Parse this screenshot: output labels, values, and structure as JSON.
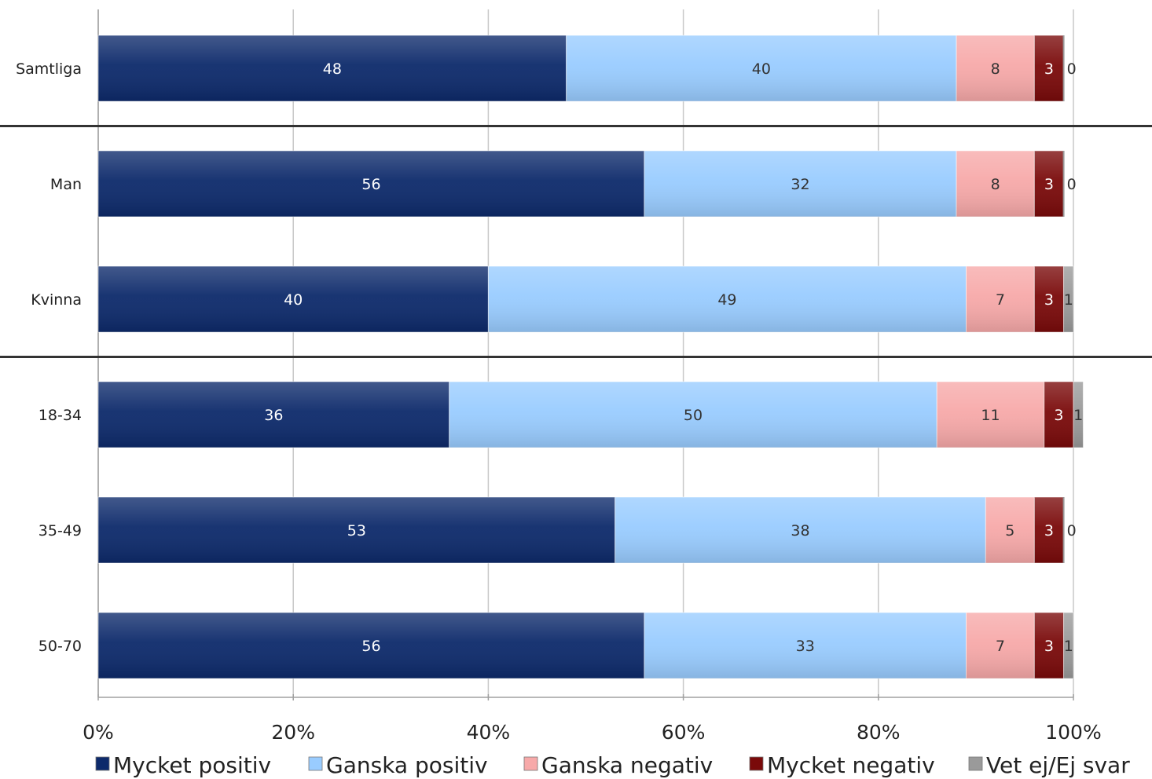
{
  "chart_data": {
    "type": "bar",
    "orientation": "horizontal",
    "stacked": true,
    "title": "",
    "xlabel": "",
    "ylabel": "",
    "xlim": [
      0,
      100
    ],
    "x_ticks": [
      "0%",
      "20%",
      "40%",
      "60%",
      "80%",
      "100%"
    ],
    "grid": true,
    "legend_position": "bottom",
    "categories": [
      "Samtliga",
      "Man",
      "Kvinna",
      "18-34",
      "35-49",
      "50-70"
    ],
    "group_separators_after": [
      "Samtliga",
      "Kvinna"
    ],
    "series": [
      {
        "name": "Mycket positiv",
        "color": "#0d2a6b",
        "label_color": "#ffffff",
        "values": [
          48,
          56,
          40,
          36,
          53,
          56
        ]
      },
      {
        "name": "Ganska positiv",
        "color": "#99ccff",
        "label_color": "#333333",
        "values": [
          40,
          32,
          49,
          50,
          38,
          33
        ]
      },
      {
        "name": "Ganska negativ",
        "color": "#f7a9a9",
        "label_color": "#333333",
        "values": [
          8,
          8,
          7,
          11,
          5,
          7
        ]
      },
      {
        "name": "Mycket negativ",
        "color": "#7a0a0a",
        "label_color": "#ffffff",
        "values": [
          3,
          3,
          3,
          3,
          3,
          3
        ]
      },
      {
        "name": "Vet ej/Ej svar",
        "color": "#9a9a9a",
        "label_color": "#333333",
        "values": [
          0,
          0,
          1,
          1,
          0,
          1
        ]
      }
    ]
  }
}
